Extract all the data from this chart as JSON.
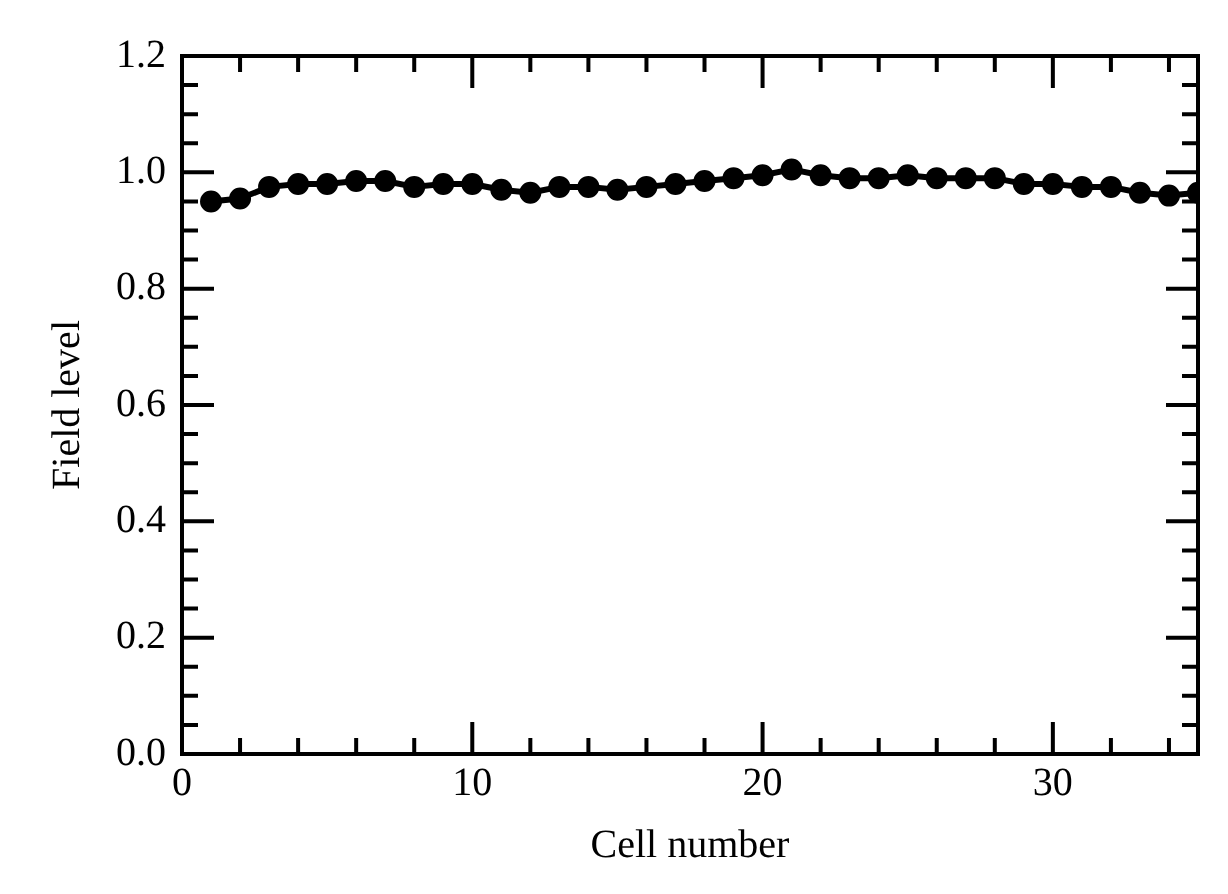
{
  "chart_data": {
    "type": "line",
    "xlabel": "Cell number",
    "ylabel": "Field level",
    "x": [
      1,
      2,
      3,
      4,
      5,
      6,
      7,
      8,
      9,
      10,
      11,
      12,
      13,
      14,
      15,
      16,
      17,
      18,
      19,
      20,
      21,
      22,
      23,
      24,
      25,
      26,
      27,
      28,
      29,
      30,
      31,
      32,
      33,
      34,
      35
    ],
    "series": [
      {
        "color": "#000000",
        "values": [
          0.95,
          0.955,
          0.975,
          0.98,
          0.98,
          0.985,
          0.985,
          0.975,
          0.98,
          0.98,
          0.97,
          0.965,
          0.975,
          0.975,
          0.97,
          0.975,
          0.98,
          0.985,
          0.99,
          0.995,
          1.005,
          0.995,
          0.99,
          0.99,
          0.995,
          0.99,
          0.99,
          0.99,
          0.98,
          0.98,
          0.975,
          0.975,
          0.965,
          0.96,
          0.965
        ]
      }
    ],
    "xlim": [
      0,
      35
    ],
    "xticks": [
      0,
      {
        "value": 2,
        "label": null
      },
      {
        "value": 4,
        "label": null
      },
      {
        "value": 6,
        "label": null
      },
      {
        "value": 8,
        "label": null
      },
      10,
      {
        "value": 12,
        "label": null
      },
      {
        "value": 14,
        "label": null
      },
      {
        "value": 16,
        "label": null
      },
      {
        "value": 18,
        "label": null
      },
      20,
      {
        "value": 22,
        "label": null
      },
      {
        "value": 24,
        "label": null
      },
      {
        "value": 26,
        "label": null
      },
      {
        "value": 28,
        "label": null
      },
      30,
      {
        "value": 32,
        "label": null
      },
      {
        "value": 34,
        "label": null
      }
    ],
    "ylim": [
      0,
      1.2
    ],
    "yticks": [
      {
        "value": 0,
        "label": "0.0"
      },
      {
        "value": 0.05,
        "label": null
      },
      {
        "value": 0.1,
        "label": null
      },
      {
        "value": 0.15,
        "label": null
      },
      {
        "value": 0.2,
        "label": "0.2"
      },
      {
        "value": 0.25,
        "label": null
      },
      {
        "value": 0.3,
        "label": null
      },
      {
        "value": 0.35,
        "label": null
      },
      {
        "value": 0.4,
        "label": "0.4"
      },
      {
        "value": 0.45,
        "label": null
      },
      {
        "value": 0.5,
        "label": null
      },
      {
        "value": 0.55,
        "label": null
      },
      {
        "value": 0.6,
        "label": "0.6"
      },
      {
        "value": 0.65,
        "label": null
      },
      {
        "value": 0.7,
        "label": null
      },
      {
        "value": 0.75,
        "label": null
      },
      {
        "value": 0.8,
        "label": "0.8"
      },
      {
        "value": 0.85,
        "label": null
      },
      {
        "value": 0.9,
        "label": null
      },
      {
        "value": 0.95,
        "label": null
      },
      {
        "value": 1.0,
        "label": "1.0"
      },
      {
        "value": 1.05,
        "label": null
      },
      {
        "value": 1.1,
        "label": null
      },
      {
        "value": 1.15,
        "label": null
      },
      {
        "value": 1.2,
        "label": "1.2"
      }
    ],
    "marker": "circle",
    "line_style": "solid",
    "grid": false,
    "legend": false
  }
}
